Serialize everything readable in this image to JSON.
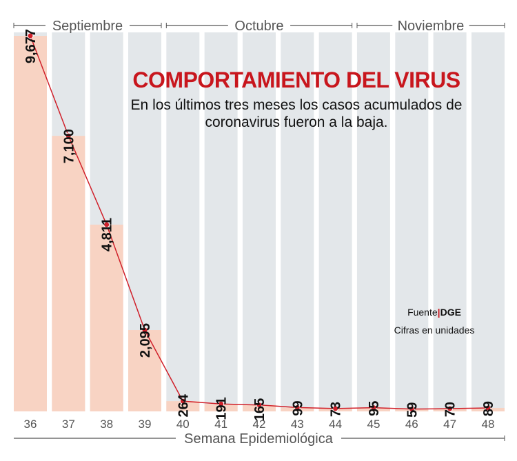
{
  "title": "COMPORTAMIENTO DEL VIRUS",
  "subtitle": "En los últimos tres meses los casos acumulados de coronavirus fueron a la baja.",
  "source_label": "Fuente",
  "source_name": "DGE",
  "units_note": "Cifras en unidades",
  "colors": {
    "bar": "#f8d3c3",
    "background_column": "#e3e7ea",
    "line": "#d0202a",
    "title": "#c8161d"
  },
  "chart_data": {
    "type": "bar",
    "xlabel": "Semana Epidemiológica",
    "months": [
      {
        "label": "Septiembre",
        "weeks": [
          36,
          39
        ]
      },
      {
        "label": "Octubre",
        "weeks": [
          40,
          44
        ]
      },
      {
        "label": "Noviembre",
        "weeks": [
          45,
          48
        ]
      }
    ],
    "categories": [
      "36",
      "37",
      "38",
      "39",
      "40",
      "41",
      "42",
      "43",
      "44",
      "45",
      "46",
      "47",
      "48"
    ],
    "values": [
      9677,
      7100,
      4811,
      2095,
      264,
      191,
      165,
      99,
      73,
      95,
      59,
      70,
      89
    ],
    "data_labels": [
      "9,677",
      "7,100",
      "4,811",
      "2,095",
      "264",
      "191",
      "165",
      "99",
      "73",
      "95",
      "59",
      "70",
      "89"
    ],
    "overlay": "line with markers",
    "ylim": [
      0,
      9677
    ],
    "grid": false
  }
}
